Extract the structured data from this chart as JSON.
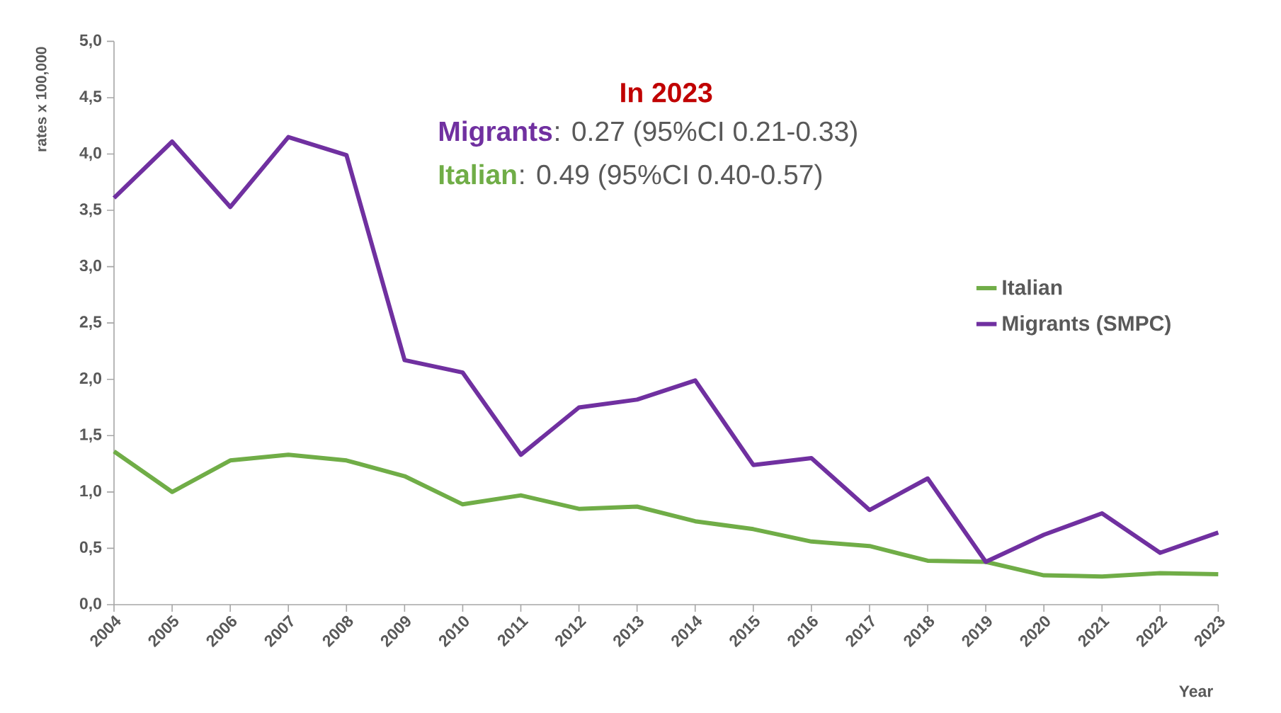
{
  "chart_data": {
    "type": "line",
    "categories": [
      "2004",
      "2005",
      "2006",
      "2007",
      "2008",
      "2009",
      "2010",
      "2011",
      "2012",
      "2013",
      "2014",
      "2015",
      "2016",
      "2017",
      "2018",
      "2019",
      "2020",
      "2021",
      "2022",
      "2023"
    ],
    "series": [
      {
        "name": "Italian",
        "color": "#70ad47",
        "values": [
          1.36,
          1.0,
          1.28,
          1.33,
          1.28,
          1.14,
          0.89,
          0.97,
          0.85,
          0.87,
          0.74,
          0.67,
          0.56,
          0.52,
          0.39,
          0.38,
          0.26,
          0.25,
          0.28,
          0.27
        ]
      },
      {
        "name": "Migrants (SMPC)",
        "color": "#7030a0",
        "values": [
          3.61,
          4.11,
          3.53,
          4.15,
          3.99,
          2.17,
          2.06,
          1.33,
          1.75,
          1.82,
          1.99,
          1.24,
          1.3,
          0.84,
          1.12,
          0.38,
          0.62,
          0.81,
          0.46,
          0.64
        ]
      }
    ],
    "xlabel": "Year",
    "ylabel": "rates x 100,000",
    "ylim": [
      0,
      5
    ],
    "yticks": [
      {
        "value": 0,
        "label": "0,0"
      },
      {
        "value": 0.5,
        "label": "0,5"
      },
      {
        "value": 1,
        "label": "1,0"
      },
      {
        "value": 1.5,
        "label": "1,5"
      },
      {
        "value": 2,
        "label": "2,0"
      },
      {
        "value": 2.5,
        "label": "2,5"
      },
      {
        "value": 3,
        "label": "3,0"
      },
      {
        "value": 3.5,
        "label": "3,5"
      },
      {
        "value": 4,
        "label": "4,0"
      },
      {
        "value": 4.5,
        "label": "4,5"
      },
      {
        "value": 5,
        "label": "5,0"
      }
    ],
    "annotations": [
      "In 2023",
      "Migrants",
      ": 0.27 (95%CI 0.21-0.33)",
      "Italian",
      ": 0.49 (95%CI 0.40-0.57)"
    ],
    "legend": "right",
    "grid": false,
    "marker": "none",
    "line_style": "solid"
  }
}
